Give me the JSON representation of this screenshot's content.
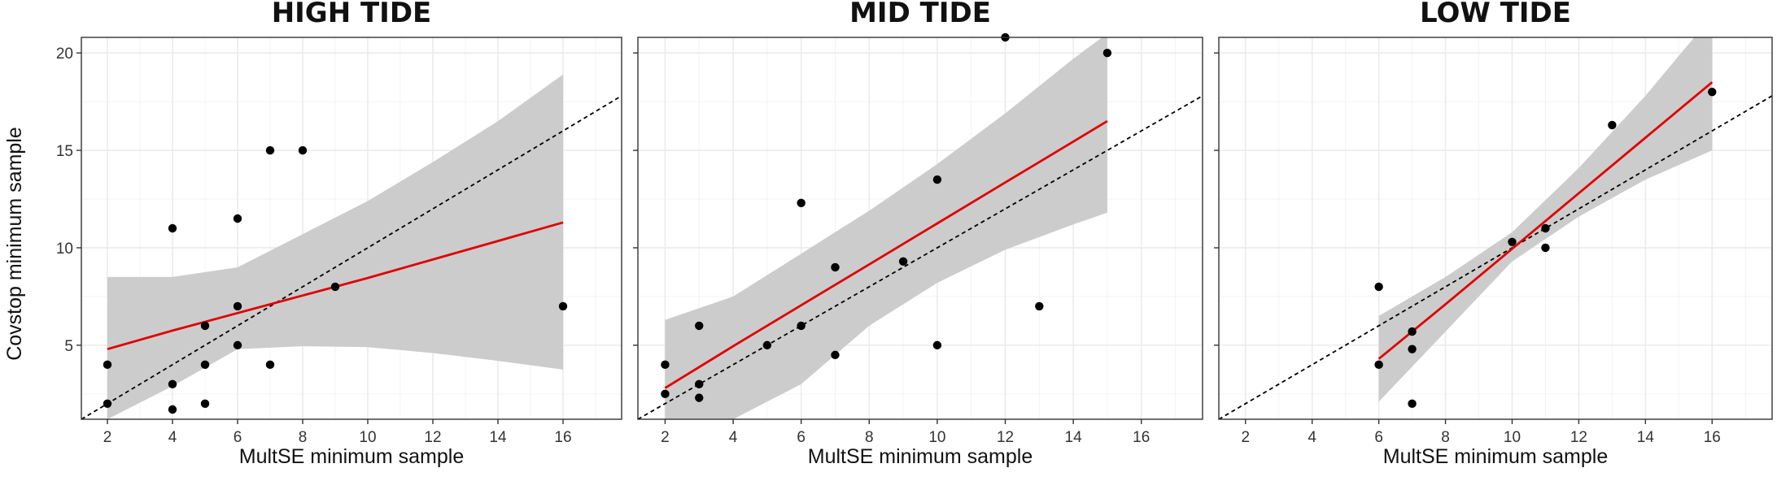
{
  "chart_data": {
    "type": "scatter",
    "ylabel": "Covstop minimum sample",
    "xlim": [
      1.2,
      17.8
    ],
    "ylim": [
      1.2,
      20.8
    ],
    "x_ticks": [
      2,
      4,
      6,
      8,
      10,
      12,
      14,
      16
    ],
    "y_ticks": [
      5,
      10,
      15,
      20
    ],
    "grid": true,
    "colors": {
      "points": "#000000",
      "fit_line": "#e00000",
      "ribbon": "#c9c9c9",
      "reference_line": "#000000",
      "grid": "#ebebeb"
    },
    "panels": [
      {
        "title": "HIGH TIDE",
        "xlabel": "MultSE minimum sample",
        "points": [
          [
            2,
            4
          ],
          [
            2,
            2
          ],
          [
            4,
            11
          ],
          [
            4,
            3
          ],
          [
            4,
            1.7
          ],
          [
            5,
            6
          ],
          [
            5,
            4
          ],
          [
            5,
            2
          ],
          [
            6,
            11.5
          ],
          [
            6,
            7
          ],
          [
            6,
            5
          ],
          [
            7,
            15
          ],
          [
            7,
            4
          ],
          [
            8,
            15
          ],
          [
            9,
            8
          ],
          [
            16,
            7
          ]
        ],
        "fit": {
          "x": [
            2,
            4,
            6,
            8,
            10,
            12,
            14,
            16
          ],
          "y": [
            4.8,
            5.75,
            6.65,
            7.55,
            8.45,
            9.4,
            10.35,
            11.3
          ]
        },
        "band": {
          "x": [
            2,
            4,
            6,
            8,
            10,
            12,
            14,
            16
          ],
          "lower": [
            1.2,
            2.9,
            4.8,
            4.95,
            4.9,
            4.6,
            4.2,
            3.75
          ],
          "upper": [
            8.5,
            8.5,
            9.0,
            10.7,
            12.4,
            14.4,
            16.5,
            18.9
          ]
        }
      },
      {
        "title": "MID TIDE",
        "xlabel": "MultSE minimum sample",
        "points": [
          [
            2,
            4
          ],
          [
            2,
            2.5
          ],
          [
            3,
            6
          ],
          [
            3,
            3
          ],
          [
            3,
            2.3
          ],
          [
            5,
            5
          ],
          [
            6,
            12.3
          ],
          [
            6,
            6
          ],
          [
            7,
            9
          ],
          [
            7,
            4.5
          ],
          [
            9,
            9.3
          ],
          [
            10,
            13.5
          ],
          [
            10,
            5
          ],
          [
            12,
            20.8
          ],
          [
            13,
            7
          ],
          [
            15,
            20
          ]
        ],
        "fit": {
          "x": [
            2,
            4,
            6,
            8,
            10,
            12,
            14,
            15
          ],
          "y": [
            2.8,
            4.95,
            7.05,
            9.15,
            11.25,
            13.35,
            15.45,
            16.5
          ]
        },
        "band": {
          "x": [
            2,
            4,
            6,
            8,
            10,
            12,
            14,
            15
          ],
          "lower": [
            1.2,
            1.2,
            3.0,
            6.0,
            8.2,
            9.9,
            11.2,
            11.8
          ],
          "upper": [
            6.3,
            7.5,
            9.7,
            11.9,
            14.3,
            16.9,
            19.7,
            21.0
          ]
        }
      },
      {
        "title": "LOW TIDE",
        "xlabel": "MultSE minimum sample",
        "points": [
          [
            6,
            8
          ],
          [
            6,
            4
          ],
          [
            7,
            5.7
          ],
          [
            7,
            4.8
          ],
          [
            7,
            2
          ],
          [
            10,
            10.3
          ],
          [
            11,
            11
          ],
          [
            11,
            10
          ],
          [
            13,
            16.3
          ],
          [
            16,
            18
          ]
        ],
        "fit": {
          "x": [
            6,
            8,
            10,
            12,
            14,
            16
          ],
          "y": [
            4.3,
            7.1,
            9.95,
            12.8,
            15.65,
            18.5
          ]
        },
        "band": {
          "x": [
            6,
            8,
            10,
            12,
            14,
            16
          ],
          "lower": [
            2.1,
            5.7,
            9.3,
            11.6,
            13.5,
            15.0
          ],
          "upper": [
            6.5,
            8.5,
            10.8,
            14.1,
            17.8,
            21.9
          ]
        }
      }
    ]
  }
}
